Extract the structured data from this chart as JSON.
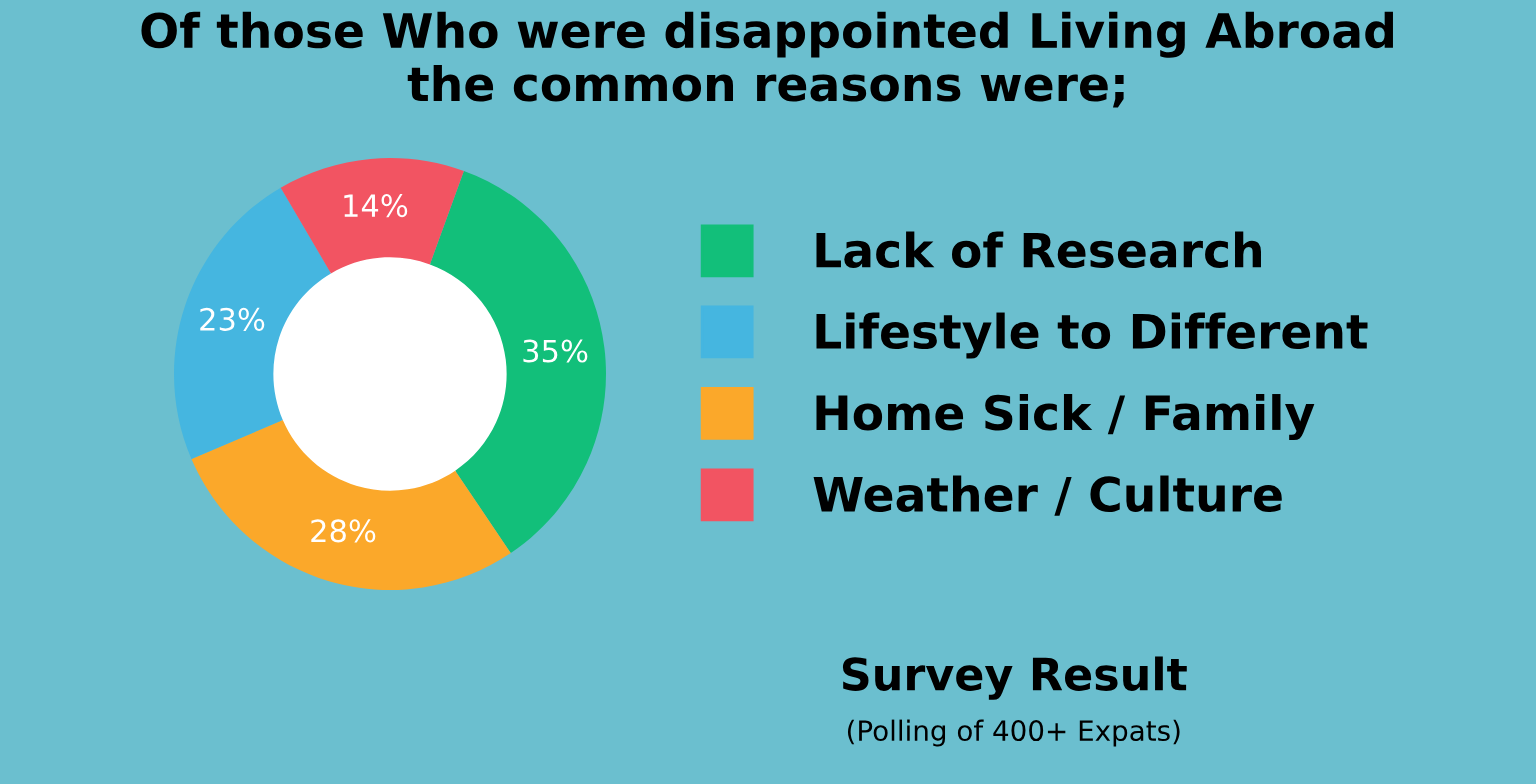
{
  "chart_data": {
    "type": "donut",
    "title": "Of those Who were disappointed Living Abroad\nthe common reasons were;",
    "categories": [
      "Lack of Research",
      "Lifestyle to Different",
      "Home Sick / Family",
      "Weather / Culture"
    ],
    "values": [
      35,
      23,
      28,
      14
    ],
    "colors": [
      "#12bf7a",
      "#45b6e0",
      "#fba82a",
      "#f25462"
    ],
    "value_labels": [
      "35%",
      "23%",
      "28%",
      "14%"
    ],
    "legend": "right",
    "annotations": [
      "Survey Result",
      "(Polling of 400+ Expats)"
    ]
  }
}
